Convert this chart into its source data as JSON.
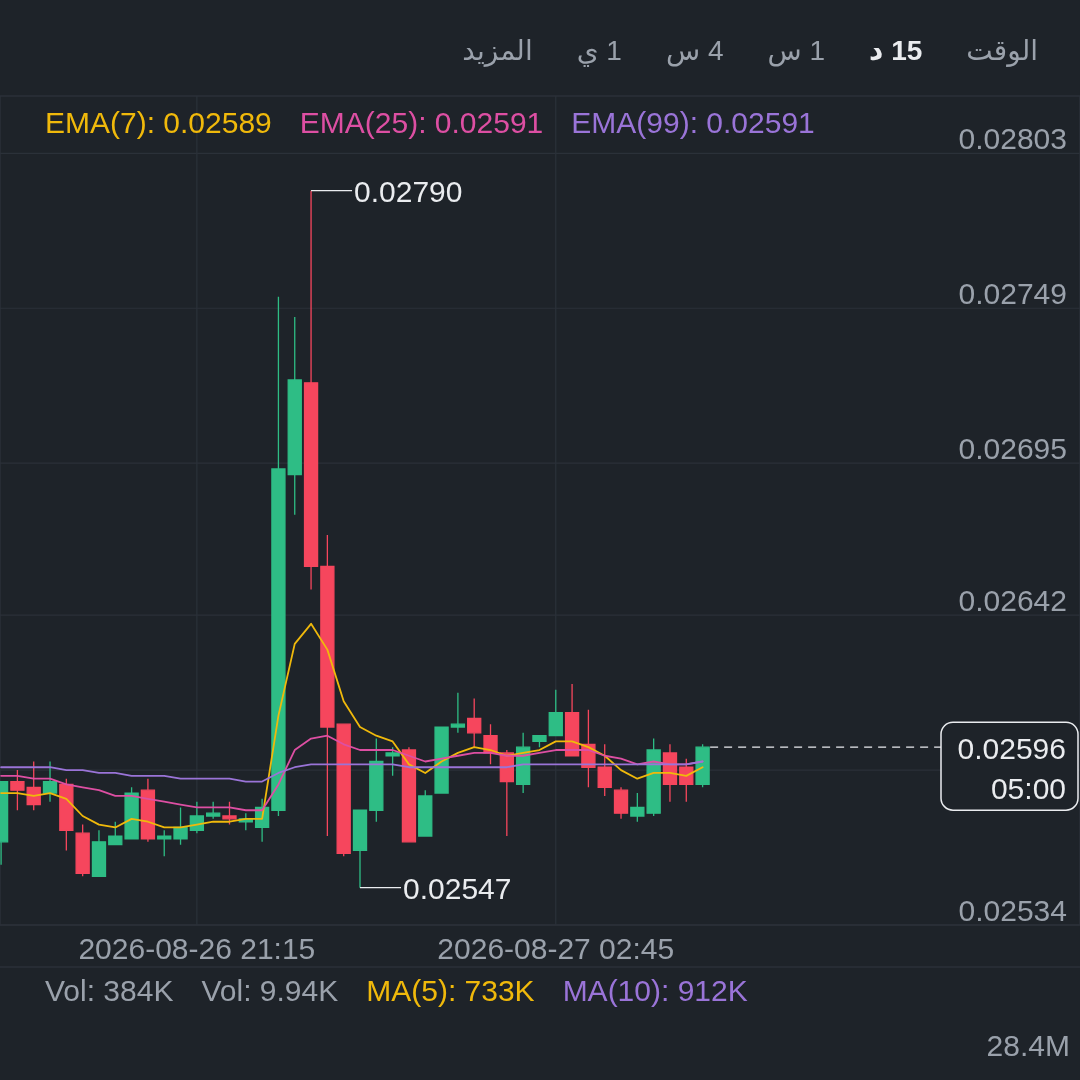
{
  "chart_data": [
    {
      "type": "other",
      "annotations": [
        "الوقت",
        "15 د",
        "1 س",
        "4 س",
        "1 ي",
        "المزيد"
      ]
    },
    {
      "type": "candlestick",
      "x": [
        "2026-08-26T18:15",
        "2026-08-26T18:30",
        "2026-08-26T18:45",
        "2026-08-26T19:00",
        "2026-08-26T19:15",
        "2026-08-26T19:30",
        "2026-08-26T19:45",
        "2026-08-26T20:00",
        "2026-08-26T20:15",
        "2026-08-26T20:30",
        "2026-08-26T20:45",
        "2026-08-26T21:00",
        "2026-08-26T21:15",
        "2026-08-26T21:30",
        "2026-08-26T21:45",
        "2026-08-26T22:00",
        "2026-08-26T22:15",
        "2026-08-26T22:30",
        "2026-08-26T22:45",
        "2026-08-26T23:00",
        "2026-08-26T23:15",
        "2026-08-26T23:30",
        "2026-08-26T23:45",
        "2026-08-27T00:00",
        "2026-08-27T00:15",
        "2026-08-27T00:30",
        "2026-08-27T00:45",
        "2026-08-27T01:00",
        "2026-08-27T01:15",
        "2026-08-27T01:30",
        "2026-08-27T01:45",
        "2026-08-27T02:00",
        "2026-08-27T02:15",
        "2026-08-27T02:30",
        "2026-08-27T02:45",
        "2026-08-27T03:00",
        "2026-08-27T03:15",
        "2026-08-27T03:30",
        "2026-08-27T03:45",
        "2026-08-27T04:00",
        "2026-08-27T04:15",
        "2026-08-27T04:30",
        "2026-08-27T04:45",
        "2026-08-27T05:00"
      ],
      "ohlc": [
        [
          0.02563,
          0.02584,
          0.02555,
          0.02584
        ],
        [
          0.02584,
          0.02588,
          0.02574,
          0.02581
        ],
        [
          0.02582,
          0.02591,
          0.02574,
          0.02576
        ],
        [
          0.0258,
          0.02591,
          0.02577,
          0.02584
        ],
        [
          0.02583,
          0.02585,
          0.0256,
          0.02567
        ],
        [
          0.02566,
          0.02569,
          0.02551,
          0.02552
        ],
        [
          0.02551,
          0.02567,
          0.02551,
          0.02563
        ],
        [
          0.02562,
          0.0257,
          0.02562,
          0.02565
        ],
        [
          0.02564,
          0.02582,
          0.02564,
          0.0258
        ],
        [
          0.02581,
          0.02585,
          0.02563,
          0.02564
        ],
        [
          0.02564,
          0.02567,
          0.02558,
          0.02565
        ],
        [
          0.02564,
          0.02575,
          0.02562,
          0.02568
        ],
        [
          0.02567,
          0.02577,
          0.02566,
          0.02572
        ],
        [
          0.02572,
          0.02577,
          0.02571,
          0.02573
        ],
        [
          0.02572,
          0.02577,
          0.02569,
          0.02571
        ],
        [
          0.0257,
          0.02573,
          0.02567,
          0.02571
        ],
        [
          0.02568,
          0.02578,
          0.02563,
          0.02575
        ],
        [
          0.02574,
          0.02753,
          0.02572,
          0.02693
        ],
        [
          0.02691,
          0.02746,
          0.02677,
          0.02724
        ],
        [
          0.02723,
          0.0279,
          0.02651,
          0.02659
        ],
        [
          0.02659,
          0.0267,
          0.02565,
          0.02603
        ],
        [
          0.02604,
          0.02604,
          0.02558,
          0.02559
        ],
        [
          0.0256,
          0.02574,
          0.02547,
          0.02574
        ],
        [
          0.02574,
          0.02599,
          0.0257,
          0.02591
        ],
        [
          0.02593,
          0.02596,
          0.02586,
          0.02594
        ],
        [
          0.02595,
          0.02596,
          0.02563,
          0.02563
        ],
        [
          0.02565,
          0.02581,
          0.02565,
          0.02579
        ],
        [
          0.0258,
          0.02603,
          0.0258,
          0.02603
        ],
        [
          0.02603,
          0.02615,
          0.02601,
          0.02604
        ],
        [
          0.02606,
          0.02613,
          0.02596,
          0.02601
        ],
        [
          0.026,
          0.02604,
          0.0259,
          0.02594
        ],
        [
          0.02594,
          0.02595,
          0.02565,
          0.02584
        ],
        [
          0.02583,
          0.02601,
          0.0258,
          0.02596
        ],
        [
          0.02598,
          0.026,
          0.02596,
          0.026
        ],
        [
          0.026,
          0.02616,
          0.026,
          0.02608
        ],
        [
          0.02608,
          0.02618,
          0.02593,
          0.02593
        ],
        [
          0.02597,
          0.02609,
          0.02582,
          0.02589
        ],
        [
          0.02589,
          0.02597,
          0.02579,
          0.02582
        ],
        [
          0.02581,
          0.02582,
          0.02571,
          0.02573
        ],
        [
          0.02572,
          0.0258,
          0.0257,
          0.02575
        ],
        [
          0.02573,
          0.02599,
          0.02572,
          0.02595
        ],
        [
          0.02594,
          0.02597,
          0.02577,
          0.02583
        ],
        [
          0.02589,
          0.02592,
          0.02577,
          0.02583
        ],
        [
          0.02583,
          0.02597,
          0.02582,
          0.02596
        ]
      ],
      "colors": [
        "#2ebd85",
        "#f6465d",
        "#f6465d",
        "#2ebd85",
        "#f6465d",
        "#f6465d",
        "#2ebd85",
        "#2ebd85",
        "#2ebd85",
        "#f6465d",
        "#2ebd85",
        "#2ebd85",
        "#2ebd85",
        "#2ebd85",
        "#f6465d",
        "#2ebd85",
        "#2ebd85",
        "#2ebd85",
        "#2ebd85",
        "#f6465d",
        "#f6465d",
        "#f6465d",
        "#2ebd85",
        "#2ebd85",
        "#2ebd85",
        "#f6465d",
        "#2ebd85",
        "#2ebd85",
        "#2ebd85",
        "#f6465d",
        "#f6465d",
        "#f6465d",
        "#2ebd85",
        "#2ebd85",
        "#2ebd85",
        "#f6465d",
        "#f6465d",
        "#f6465d",
        "#f6465d",
        "#2ebd85",
        "#2ebd85",
        "#f6465d",
        "#f6465d",
        "#2ebd85"
      ],
      "series": [
        {
          "name": "EMA(7): 0.02589",
          "type": "line",
          "color": "#f0b90b",
          "values": [
            0.0258,
            0.0258,
            0.02579,
            0.0258,
            0.02578,
            0.02572,
            0.02569,
            0.02568,
            0.02571,
            0.0257,
            0.02568,
            0.02568,
            0.02569,
            0.0257,
            0.0257,
            0.02571,
            0.02571,
            0.02607,
            0.02632,
            0.02639,
            0.0263,
            0.02612,
            0.02603,
            0.026,
            0.02598,
            0.0259,
            0.02587,
            0.02591,
            0.02594,
            0.02596,
            0.02595,
            0.02593,
            0.02594,
            0.02595,
            0.02598,
            0.02598,
            0.02596,
            0.02593,
            0.02588,
            0.02585,
            0.02587,
            0.02587,
            0.02586,
            0.02589
          ]
        },
        {
          "name": "EMA(25): 0.02591",
          "type": "line",
          "color": "#dd4fa3",
          "values": [
            0.02586,
            0.02586,
            0.02585,
            0.02585,
            0.02583,
            0.02582,
            0.02581,
            0.02579,
            0.02579,
            0.02578,
            0.02577,
            0.02576,
            0.02575,
            0.02575,
            0.02575,
            0.02574,
            0.02574,
            0.02583,
            0.02595,
            0.02599,
            0.026,
            0.02597,
            0.02595,
            0.02595,
            0.02595,
            0.02593,
            0.02591,
            0.02592,
            0.02593,
            0.02594,
            0.02594,
            0.02593,
            0.02593,
            0.02594,
            0.02595,
            0.02595,
            0.02595,
            0.02593,
            0.02592,
            0.0259,
            0.02591,
            0.0259,
            0.0259,
            0.02591
          ]
        },
        {
          "name": "EMA(99): 0.02591",
          "type": "line",
          "color": "#9a74d8",
          "values": [
            0.02589,
            0.02589,
            0.02589,
            0.02589,
            0.02588,
            0.02588,
            0.02587,
            0.02587,
            0.02586,
            0.02586,
            0.02586,
            0.02585,
            0.02585,
            0.02585,
            0.02585,
            0.02584,
            0.02584,
            0.02587,
            0.02589,
            0.0259,
            0.0259,
            0.0259,
            0.0259,
            0.0259,
            0.0259,
            0.02589,
            0.02589,
            0.02589,
            0.02589,
            0.02589,
            0.02589,
            0.02589,
            0.0259,
            0.0259,
            0.0259,
            0.0259,
            0.0259,
            0.0259,
            0.0259,
            0.0259,
            0.0259,
            0.0259,
            0.0259,
            0.02591
          ]
        }
      ],
      "xlim": [
        "2026-08-26T18:14",
        "2026-08-27T10:47"
      ],
      "xticks": [
        {
          "value": "2026-08-26T21:15",
          "label": "2026-08-26 21:15"
        },
        {
          "value": "2026-08-27T02:45",
          "label": "2026-08-27 02:45"
        }
      ],
      "ylim": [
        0.02534,
        0.02823
      ],
      "yticks": [
        0.02534,
        {
          "value": 0.02588,
          "label": null
        },
        0.02642,
        0.02695,
        0.02749,
        0.02803
      ],
      "grid": true,
      "legend": "top left",
      "ref_lines": [
        {
          "axis": "y",
          "value": 0.02596,
          "label": "0.02596",
          "color": "#eaecef",
          "line_style": "dashed"
        }
      ],
      "annotations": [
        {
          "text": "0.02790",
          "x": "2026-08-26T23:00",
          "y": 0.0279
        },
        {
          "text": "0.02547",
          "x": "2026-08-26T23:45",
          "y": 0.02547
        },
        "05:00"
      ]
    },
    {
      "type": "other",
      "series": [
        {
          "name": "Vol: 384K",
          "color": "#9aa1ab"
        },
        {
          "name": "Vol: 9.94K",
          "color": "#9aa1ab"
        },
        {
          "name": "MA(5): 733K",
          "color": "#f0b90b"
        },
        {
          "name": "MA(10): 912K",
          "color": "#9a74d8"
        }
      ],
      "annotations": [
        "28.4M"
      ]
    }
  ]
}
